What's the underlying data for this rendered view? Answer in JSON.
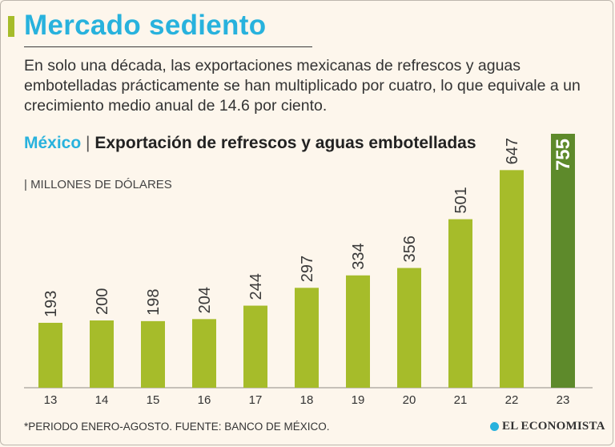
{
  "header": {
    "title": "Mercado sediento",
    "subtitle": "En solo una década, las exportaciones mexicanas de refrescos y aguas embotelladas prácticamente se han multiplicado por cuatro, lo que equivale a un crecimiento medio anual de 14.6 por ciento."
  },
  "chart_data": {
    "type": "bar",
    "title_prefix": "México",
    "title_separator": "|",
    "title": "Exportación de refrescos y aguas embotelladas",
    "units": "| MILLONES DE DÓLARES",
    "categories": [
      "13",
      "14",
      "15",
      "16",
      "17",
      "18",
      "19",
      "20",
      "21",
      "22",
      "23"
    ],
    "values": [
      193,
      200,
      198,
      204,
      244,
      297,
      334,
      356,
      501,
      647,
      755
    ],
    "highlight_index": 10,
    "ylim": [
      0,
      755
    ],
    "grid": false,
    "xlabel": "",
    "ylabel": "",
    "colors": {
      "bar": "#a6bc2a",
      "highlight": "#5e8a2b",
      "label": "#3a3a3a",
      "highlight_label": "#ffffff"
    }
  },
  "footer": {
    "note": "*PERIODO ENERO-AGOSTO.  FUENTE: BANCO DE MÉXICO.",
    "brand": "EL ECONOMISTA"
  },
  "colors": {
    "accent_blue": "#28b2dd",
    "accent_green": "#a6bc2a",
    "background": "#fdf6ec"
  }
}
